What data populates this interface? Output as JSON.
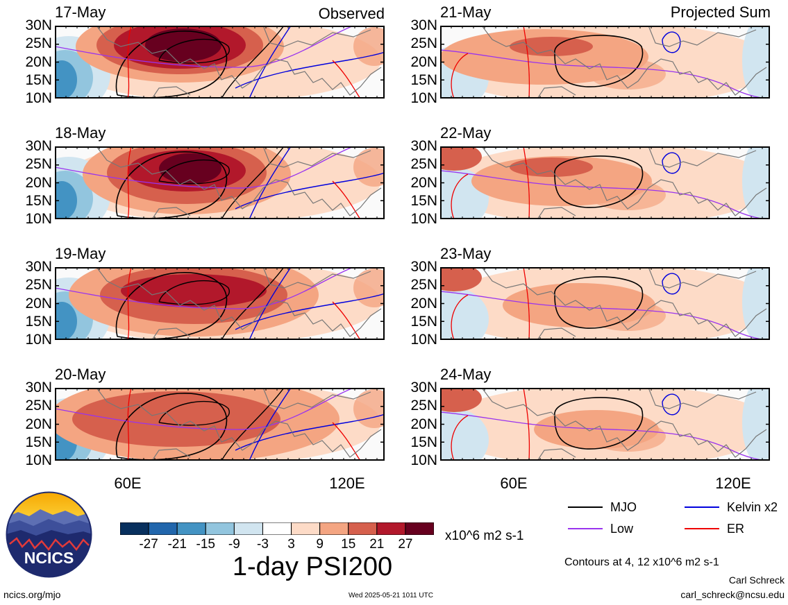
{
  "header": {
    "observed_label": "Observed",
    "projected_label": "Projected Sum"
  },
  "panels": [
    {
      "date": "17-May"
    },
    {
      "date": "18-May"
    },
    {
      "date": "19-May"
    },
    {
      "date": "20-May"
    },
    {
      "date": "21-May"
    },
    {
      "date": "22-May"
    },
    {
      "date": "23-May"
    },
    {
      "date": "24-May"
    }
  ],
  "lat_labels": [
    "30N",
    "25N",
    "20N",
    "15N",
    "10N"
  ],
  "lon_labels": [
    "60E",
    "120E"
  ],
  "colorbar": {
    "tick_labels": [
      "-27",
      "-21",
      "-15",
      "-9",
      "-3",
      "3",
      "9",
      "15",
      "21",
      "27"
    ],
    "colors": [
      "#08305e",
      "#2166ac",
      "#4393c3",
      "#92c5de",
      "#d1e5f0",
      "#ffffff",
      "#fddbc7",
      "#f4a582",
      "#d6604d",
      "#b2182b",
      "#67001f"
    ],
    "units": "x10^6 m2 s-1"
  },
  "title": "1-day PSI200",
  "legend": {
    "mjo": {
      "label": "MJO",
      "color": "#000000"
    },
    "kelvin": {
      "label": "Kelvin x2",
      "color": "#0000dd"
    },
    "low": {
      "label": "Low",
      "color": "#9933ee"
    },
    "er": {
      "label": "ER",
      "color": "#ee0000"
    }
  },
  "contour_note": "Contours at 4, 12 x10^6 m2 s-1",
  "author": {
    "name": "Carl Schreck",
    "email": "carl_schreck@ncsu.edu"
  },
  "logo": {
    "text": "NCICS"
  },
  "footer": {
    "url": "ncics.org/mjo",
    "timestamp": "Wed 2025-05-21 1011 UTC"
  }
}
